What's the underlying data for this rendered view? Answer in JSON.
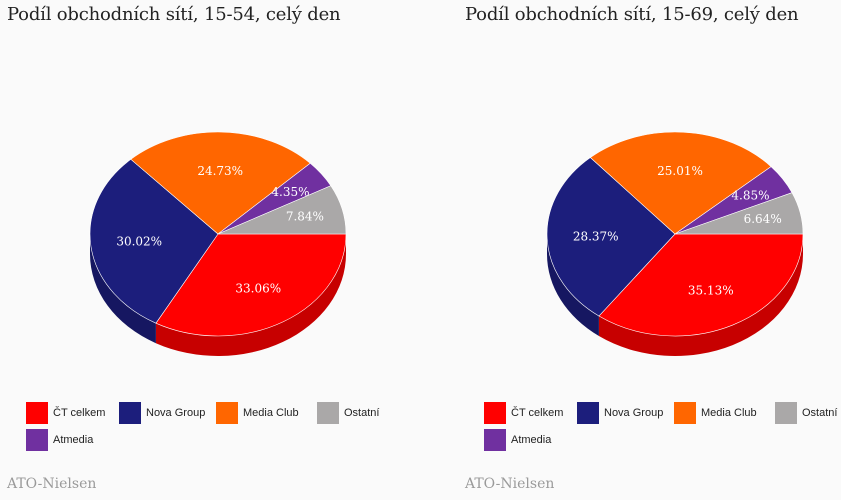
{
  "colors": {
    "ct": "#ff0000",
    "nova": "#1c1e7c",
    "media": "#ff6600",
    "ostatni": "#aaa8a8",
    "atmedia": "#7030a0"
  },
  "legend": [
    {
      "key": "ct",
      "label": "ČT celkem"
    },
    {
      "key": "nova",
      "label": "Nova Group"
    },
    {
      "key": "media",
      "label": "Media Club"
    },
    {
      "key": "ostatni",
      "label": "Ostatní"
    },
    {
      "key": "atmedia",
      "label": "Atmedia"
    }
  ],
  "chart_data": [
    {
      "type": "pie",
      "title": "Podíl obchodních sítí, 15-54, celý den",
      "source": "ATO-Nielsen",
      "slices": [
        {
          "key": "ct",
          "name": "ČT celkem",
          "value": 33.06,
          "label": "33.06%"
        },
        {
          "key": "nova",
          "name": "Nova Group",
          "value": 30.02,
          "label": "30.02%"
        },
        {
          "key": "media",
          "name": "Media Club",
          "value": 24.73,
          "label": "24.73%"
        },
        {
          "key": "atmedia",
          "name": "Atmedia",
          "value": 4.35,
          "label": "4.35%"
        },
        {
          "key": "ostatni",
          "name": "Ostatní",
          "value": 7.84,
          "label": "7.84%"
        }
      ]
    },
    {
      "type": "pie",
      "title": "Podíl obchodních sítí, 15-69, celý den",
      "source": "ATO-Nielsen",
      "slices": [
        {
          "key": "ct",
          "name": "ČT celkem",
          "value": 35.13,
          "label": "35.13%"
        },
        {
          "key": "nova",
          "name": "Nova Group",
          "value": 28.37,
          "label": "28.37%"
        },
        {
          "key": "media",
          "name": "Media Club",
          "value": 25.01,
          "label": "25.01%"
        },
        {
          "key": "atmedia",
          "name": "Atmedia",
          "value": 4.85,
          "label": "4.85%"
        },
        {
          "key": "ostatni",
          "name": "Ostatní",
          "value": 6.64,
          "label": "6.64%"
        }
      ]
    }
  ]
}
